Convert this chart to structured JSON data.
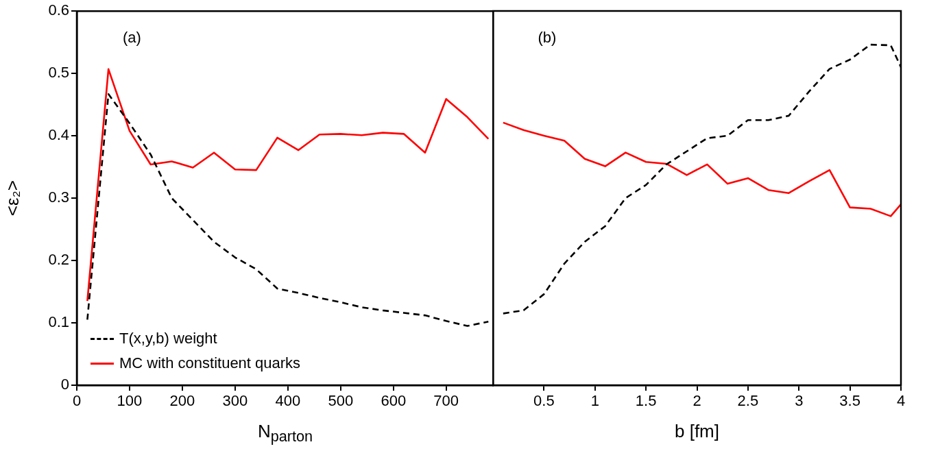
{
  "chart_data": [
    {
      "type": "line",
      "xlabel": "N$_{parton}$",
      "ylabel": "<ε₂>",
      "annotations": [
        "(a)"
      ],
      "xlim": [
        0,
        790
      ],
      "xticks": [
        0,
        100,
        200,
        300,
        400,
        500,
        600,
        700
      ],
      "ylim": [
        0,
        0.6
      ],
      "yticks": [
        0,
        0.1,
        0.2,
        0.3,
        0.4,
        0.5,
        0.6
      ],
      "grid": false,
      "legend": "bottom left",
      "series": [
        {
          "name": "T(x,y,b) weight",
          "color": "#000000",
          "line_style": "dashed",
          "x": [
            20,
            60,
            100,
            140,
            180,
            220,
            260,
            300,
            340,
            380,
            420,
            460,
            500,
            540,
            580,
            620,
            660,
            700,
            740,
            780
          ],
          "values": [
            0.105,
            0.467,
            0.42,
            0.37,
            0.3,
            0.265,
            0.23,
            0.205,
            0.186,
            0.155,
            0.148,
            0.14,
            0.133,
            0.125,
            0.12,
            0.116,
            0.112,
            0.103,
            0.095,
            0.102
          ]
        },
        {
          "name": "MC with constituent quarks",
          "color": "#ff0000",
          "line_style": "solid",
          "x": [
            20,
            60,
            100,
            140,
            180,
            220,
            260,
            300,
            340,
            380,
            420,
            460,
            500,
            540,
            580,
            620,
            660,
            700,
            740,
            780
          ],
          "values": [
            0.135,
            0.507,
            0.408,
            0.354,
            0.359,
            0.349,
            0.373,
            0.346,
            0.345,
            0.397,
            0.377,
            0.402,
            0.403,
            0.401,
            0.405,
            0.403,
            0.373,
            0.459,
            0.43,
            0.395
          ]
        }
      ]
    },
    {
      "type": "line",
      "xlabel": "b [fm]",
      "annotations": [
        "(b)"
      ],
      "xlim": [
        0,
        4
      ],
      "xticks": [
        0.5,
        1,
        1.5,
        2,
        2.5,
        3,
        3.5,
        4
      ],
      "ylim": [
        0,
        0.6
      ],
      "yticks": [
        0,
        0.1,
        0.2,
        0.3,
        0.4,
        0.5,
        0.6
      ],
      "grid": false,
      "tick_labels": "x",
      "series": [
        {
          "color": "#000000",
          "line_style": "dashed",
          "x": [
            0.1,
            0.3,
            0.5,
            0.7,
            0.9,
            1.1,
            1.3,
            1.5,
            1.7,
            1.9,
            2.1,
            2.3,
            2.5,
            2.7,
            2.9,
            3.1,
            3.3,
            3.5,
            3.7,
            3.9,
            4.0
          ],
          "values": [
            0.115,
            0.12,
            0.146,
            0.195,
            0.23,
            0.255,
            0.3,
            0.321,
            0.354,
            0.375,
            0.396,
            0.4,
            0.425,
            0.425,
            0.432,
            0.471,
            0.507,
            0.522,
            0.546,
            0.545,
            0.51
          ]
        },
        {
          "color": "#ff0000",
          "line_style": "solid",
          "x": [
            0.1,
            0.3,
            0.5,
            0.7,
            0.9,
            1.1,
            1.3,
            1.5,
            1.7,
            1.9,
            2.1,
            2.3,
            2.5,
            2.7,
            2.9,
            3.1,
            3.3,
            3.5,
            3.7,
            3.9,
            4.0
          ],
          "values": [
            0.421,
            0.409,
            0.4,
            0.392,
            0.363,
            0.351,
            0.373,
            0.358,
            0.355,
            0.337,
            0.354,
            0.323,
            0.332,
            0.313,
            0.308,
            0.327,
            0.345,
            0.285,
            0.283,
            0.271,
            0.29
          ]
        }
      ]
    }
  ]
}
